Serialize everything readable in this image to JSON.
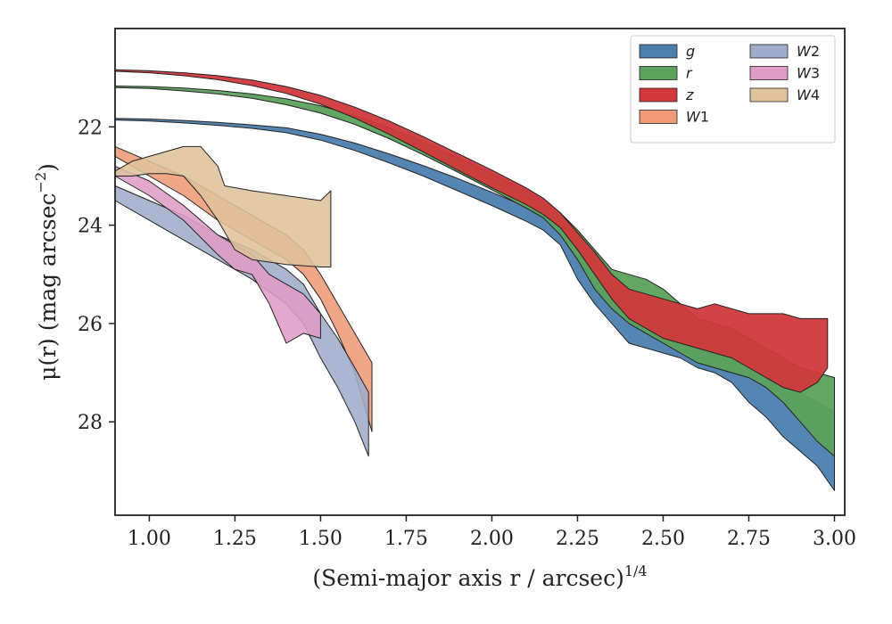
{
  "chart_data": {
    "type": "area",
    "title": "",
    "xlabel": "(Semi-major axis r / arcsec)",
    "xlabel_superscript": "1/4",
    "ylabel": "μ(r) (mag arcsec",
    "ylabel_superscript": "−2",
    "xlim": [
      0.9,
      3.03
    ],
    "ylim": [
      29.9,
      20.0
    ],
    "y_inverted": true,
    "x_ticks": [
      "1.00",
      "1.25",
      "1.50",
      "1.75",
      "2.00",
      "2.25",
      "2.50",
      "2.75",
      "3.00"
    ],
    "y_ticks": [
      "22",
      "24",
      "26",
      "28"
    ],
    "legend_position": "top-right",
    "grid": false,
    "series": [
      {
        "name": "g",
        "label_main": "g",
        "label_sub": "",
        "color": "#4c7eae",
        "upper": [
          [
            0.9,
            21.83
          ],
          [
            1.0,
            21.84
          ],
          [
            1.1,
            21.87
          ],
          [
            1.2,
            21.91
          ],
          [
            1.3,
            21.96
          ],
          [
            1.4,
            22.02
          ],
          [
            1.5,
            22.15
          ],
          [
            1.6,
            22.33
          ],
          [
            1.7,
            22.55
          ],
          [
            1.8,
            22.79
          ],
          [
            1.9,
            23.05
          ],
          [
            2.0,
            23.33
          ],
          [
            2.1,
            23.63
          ],
          [
            2.15,
            23.8
          ],
          [
            2.2,
            24.05
          ],
          [
            2.25,
            24.5
          ],
          [
            2.3,
            25.0
          ],
          [
            2.35,
            25.3
          ],
          [
            2.4,
            25.5
          ],
          [
            2.45,
            25.7
          ],
          [
            2.5,
            25.9
          ],
          [
            2.55,
            26.1
          ],
          [
            2.6,
            26.3
          ],
          [
            2.65,
            26.4
          ],
          [
            2.7,
            26.6
          ],
          [
            2.75,
            26.8
          ],
          [
            2.8,
            27.0
          ],
          [
            2.85,
            27.2
          ],
          [
            2.9,
            27.4
          ],
          [
            2.95,
            27.6
          ],
          [
            3.0,
            27.8
          ]
        ],
        "lower": [
          [
            0.9,
            21.86
          ],
          [
            1.0,
            21.88
          ],
          [
            1.1,
            21.92
          ],
          [
            1.2,
            21.97
          ],
          [
            1.3,
            22.03
          ],
          [
            1.4,
            22.12
          ],
          [
            1.5,
            22.27
          ],
          [
            1.6,
            22.48
          ],
          [
            1.7,
            22.73
          ],
          [
            1.8,
            23.0
          ],
          [
            1.9,
            23.3
          ],
          [
            2.0,
            23.6
          ],
          [
            2.1,
            23.92
          ],
          [
            2.15,
            24.1
          ],
          [
            2.2,
            24.4
          ],
          [
            2.25,
            25.1
          ],
          [
            2.3,
            25.6
          ],
          [
            2.35,
            26.0
          ],
          [
            2.4,
            26.4
          ],
          [
            2.45,
            26.5
          ],
          [
            2.5,
            26.6
          ],
          [
            2.55,
            26.7
          ],
          [
            2.6,
            26.9
          ],
          [
            2.65,
            27.0
          ],
          [
            2.7,
            27.2
          ],
          [
            2.75,
            27.6
          ],
          [
            2.8,
            27.9
          ],
          [
            2.85,
            28.3
          ],
          [
            2.9,
            28.6
          ],
          [
            2.95,
            28.9
          ],
          [
            3.0,
            29.4
          ]
        ]
      },
      {
        "name": "r",
        "label_main": "r",
        "label_sub": "",
        "color": "#5ca15c",
        "upper": [
          [
            0.9,
            21.17
          ],
          [
            1.0,
            21.18
          ],
          [
            1.1,
            21.21
          ],
          [
            1.2,
            21.26
          ],
          [
            1.3,
            21.33
          ],
          [
            1.4,
            21.43
          ],
          [
            1.5,
            21.57
          ],
          [
            1.6,
            21.77
          ],
          [
            1.7,
            22.02
          ],
          [
            1.8,
            22.3
          ],
          [
            1.9,
            22.62
          ],
          [
            2.0,
            22.95
          ],
          [
            2.1,
            23.3
          ],
          [
            2.15,
            23.5
          ],
          [
            2.2,
            23.75
          ],
          [
            2.25,
            24.1
          ],
          [
            2.3,
            24.5
          ],
          [
            2.35,
            24.9
          ],
          [
            2.4,
            25.0
          ],
          [
            2.45,
            25.1
          ],
          [
            2.5,
            25.3
          ],
          [
            2.55,
            25.6
          ],
          [
            2.6,
            25.9
          ],
          [
            2.65,
            26.0
          ],
          [
            2.7,
            26.1
          ],
          [
            2.75,
            26.3
          ],
          [
            2.8,
            26.5
          ],
          [
            2.85,
            26.7
          ],
          [
            2.9,
            26.9
          ],
          [
            2.95,
            27.0
          ],
          [
            3.0,
            27.1
          ]
        ],
        "lower": [
          [
            0.9,
            21.2
          ],
          [
            1.0,
            21.22
          ],
          [
            1.1,
            21.27
          ],
          [
            1.2,
            21.33
          ],
          [
            1.3,
            21.42
          ],
          [
            1.4,
            21.55
          ],
          [
            1.5,
            21.72
          ],
          [
            1.6,
            21.95
          ],
          [
            1.7,
            22.24
          ],
          [
            1.8,
            22.57
          ],
          [
            1.9,
            22.92
          ],
          [
            2.0,
            23.28
          ],
          [
            2.1,
            23.65
          ],
          [
            2.15,
            23.85
          ],
          [
            2.2,
            24.2
          ],
          [
            2.25,
            24.7
          ],
          [
            2.3,
            25.3
          ],
          [
            2.35,
            25.7
          ],
          [
            2.4,
            26.0
          ],
          [
            2.45,
            26.2
          ],
          [
            2.5,
            26.4
          ],
          [
            2.55,
            26.6
          ],
          [
            2.6,
            26.8
          ],
          [
            2.65,
            26.9
          ],
          [
            2.7,
            27.0
          ],
          [
            2.75,
            27.1
          ],
          [
            2.8,
            27.3
          ],
          [
            2.85,
            27.6
          ],
          [
            2.9,
            28.0
          ],
          [
            2.95,
            28.4
          ],
          [
            3.0,
            28.7
          ]
        ]
      },
      {
        "name": "z",
        "label_main": "z",
        "label_sub": "",
        "color": "#d1383c",
        "upper": [
          [
            0.9,
            20.84
          ],
          [
            1.0,
            20.86
          ],
          [
            1.1,
            20.9
          ],
          [
            1.2,
            20.96
          ],
          [
            1.3,
            21.05
          ],
          [
            1.4,
            21.18
          ],
          [
            1.5,
            21.36
          ],
          [
            1.6,
            21.6
          ],
          [
            1.7,
            21.88
          ],
          [
            1.8,
            22.2
          ],
          [
            1.9,
            22.54
          ],
          [
            2.0,
            22.88
          ],
          [
            2.1,
            23.24
          ],
          [
            2.15,
            23.45
          ],
          [
            2.2,
            23.75
          ],
          [
            2.25,
            24.15
          ],
          [
            2.3,
            24.55
          ],
          [
            2.35,
            25.0
          ],
          [
            2.4,
            25.3
          ],
          [
            2.45,
            25.4
          ],
          [
            2.5,
            25.5
          ],
          [
            2.55,
            25.6
          ],
          [
            2.6,
            25.7
          ],
          [
            2.65,
            25.6
          ],
          [
            2.7,
            25.7
          ],
          [
            2.75,
            25.8
          ],
          [
            2.8,
            25.8
          ],
          [
            2.85,
            25.8
          ],
          [
            2.9,
            25.9
          ],
          [
            2.95,
            25.9
          ],
          [
            2.98,
            25.9
          ]
        ],
        "lower": [
          [
            0.9,
            20.87
          ],
          [
            1.0,
            20.9
          ],
          [
            1.1,
            20.96
          ],
          [
            1.2,
            21.04
          ],
          [
            1.3,
            21.16
          ],
          [
            1.4,
            21.32
          ],
          [
            1.5,
            21.54
          ],
          [
            1.6,
            21.82
          ],
          [
            1.7,
            22.15
          ],
          [
            1.8,
            22.51
          ],
          [
            1.9,
            22.88
          ],
          [
            2.0,
            23.24
          ],
          [
            2.1,
            23.58
          ],
          [
            2.15,
            23.78
          ],
          [
            2.2,
            24.05
          ],
          [
            2.25,
            24.5
          ],
          [
            2.3,
            25.0
          ],
          [
            2.35,
            25.5
          ],
          [
            2.4,
            25.9
          ],
          [
            2.45,
            26.1
          ],
          [
            2.5,
            26.3
          ],
          [
            2.55,
            26.4
          ],
          [
            2.6,
            26.5
          ],
          [
            2.65,
            26.6
          ],
          [
            2.7,
            26.7
          ],
          [
            2.75,
            26.9
          ],
          [
            2.8,
            27.1
          ],
          [
            2.85,
            27.3
          ],
          [
            2.9,
            27.4
          ],
          [
            2.95,
            27.2
          ],
          [
            2.98,
            26.9
          ]
        ]
      },
      {
        "name": "W1",
        "label_main": "W",
        "label_sub": "1",
        "color": "#ef9a78",
        "upper": [
          [
            0.9,
            22.4
          ],
          [
            1.0,
            22.7
          ],
          [
            1.1,
            23.0
          ],
          [
            1.2,
            23.4
          ],
          [
            1.3,
            23.8
          ],
          [
            1.4,
            24.2
          ],
          [
            1.45,
            24.5
          ],
          [
            1.5,
            25.0
          ],
          [
            1.55,
            25.6
          ],
          [
            1.6,
            26.2
          ],
          [
            1.65,
            26.8
          ]
        ],
        "lower": [
          [
            0.9,
            22.6
          ],
          [
            1.0,
            23.0
          ],
          [
            1.1,
            23.4
          ],
          [
            1.2,
            23.9
          ],
          [
            1.3,
            24.3
          ],
          [
            1.4,
            24.7
          ],
          [
            1.45,
            25.0
          ],
          [
            1.5,
            25.5
          ],
          [
            1.55,
            26.2
          ],
          [
            1.6,
            27.0
          ],
          [
            1.65,
            28.2
          ]
        ]
      },
      {
        "name": "W2",
        "label_main": "W",
        "label_sub": "2",
        "color": "#9fadcb",
        "upper": [
          [
            0.9,
            23.2
          ],
          [
            1.0,
            23.5
          ],
          [
            1.1,
            23.8
          ],
          [
            1.2,
            24.2
          ],
          [
            1.3,
            24.5
          ],
          [
            1.4,
            24.9
          ],
          [
            1.45,
            25.2
          ],
          [
            1.5,
            25.8
          ],
          [
            1.55,
            26.3
          ],
          [
            1.6,
            26.9
          ],
          [
            1.64,
            27.4
          ]
        ],
        "lower": [
          [
            0.9,
            23.5
          ],
          [
            1.0,
            23.9
          ],
          [
            1.1,
            24.3
          ],
          [
            1.2,
            24.7
          ],
          [
            1.3,
            25.1
          ],
          [
            1.4,
            25.6
          ],
          [
            1.45,
            26.0
          ],
          [
            1.5,
            26.7
          ],
          [
            1.55,
            27.3
          ],
          [
            1.6,
            28.0
          ],
          [
            1.64,
            28.7
          ]
        ]
      },
      {
        "name": "W3",
        "label_main": "W",
        "label_sub": "3",
        "color": "#df9cc7",
        "upper": [
          [
            0.9,
            22.8
          ],
          [
            1.0,
            23.1
          ],
          [
            1.1,
            23.6
          ],
          [
            1.2,
            24.2
          ],
          [
            1.25,
            24.4
          ],
          [
            1.3,
            24.6
          ],
          [
            1.35,
            25.0
          ],
          [
            1.4,
            25.2
          ],
          [
            1.45,
            25.4
          ],
          [
            1.5,
            25.8
          ]
        ],
        "lower": [
          [
            0.9,
            23.0
          ],
          [
            1.0,
            23.4
          ],
          [
            1.1,
            23.9
          ],
          [
            1.2,
            24.6
          ],
          [
            1.25,
            24.9
          ],
          [
            1.3,
            25.0
          ],
          [
            1.35,
            25.6
          ],
          [
            1.4,
            26.4
          ],
          [
            1.45,
            26.2
          ],
          [
            1.5,
            26.3
          ]
        ]
      },
      {
        "name": "W4",
        "label_main": "W",
        "label_sub": "4",
        "color": "#dec39c",
        "upper": [
          [
            0.9,
            22.9
          ],
          [
            0.95,
            22.7
          ],
          [
            1.0,
            22.6
          ],
          [
            1.05,
            22.5
          ],
          [
            1.1,
            22.4
          ],
          [
            1.15,
            22.4
          ],
          [
            1.2,
            22.8
          ],
          [
            1.22,
            23.2
          ],
          [
            1.3,
            23.3
          ],
          [
            1.4,
            23.4
          ],
          [
            1.5,
            23.5
          ],
          [
            1.53,
            23.3
          ]
        ],
        "lower": [
          [
            0.9,
            23.0
          ],
          [
            0.95,
            23.0
          ],
          [
            1.0,
            22.95
          ],
          [
            1.05,
            22.95
          ],
          [
            1.1,
            23.0
          ],
          [
            1.15,
            23.4
          ],
          [
            1.2,
            23.9
          ],
          [
            1.25,
            24.5
          ],
          [
            1.3,
            24.7
          ],
          [
            1.4,
            24.8
          ],
          [
            1.5,
            24.85
          ],
          [
            1.53,
            24.85
          ]
        ]
      }
    ]
  }
}
